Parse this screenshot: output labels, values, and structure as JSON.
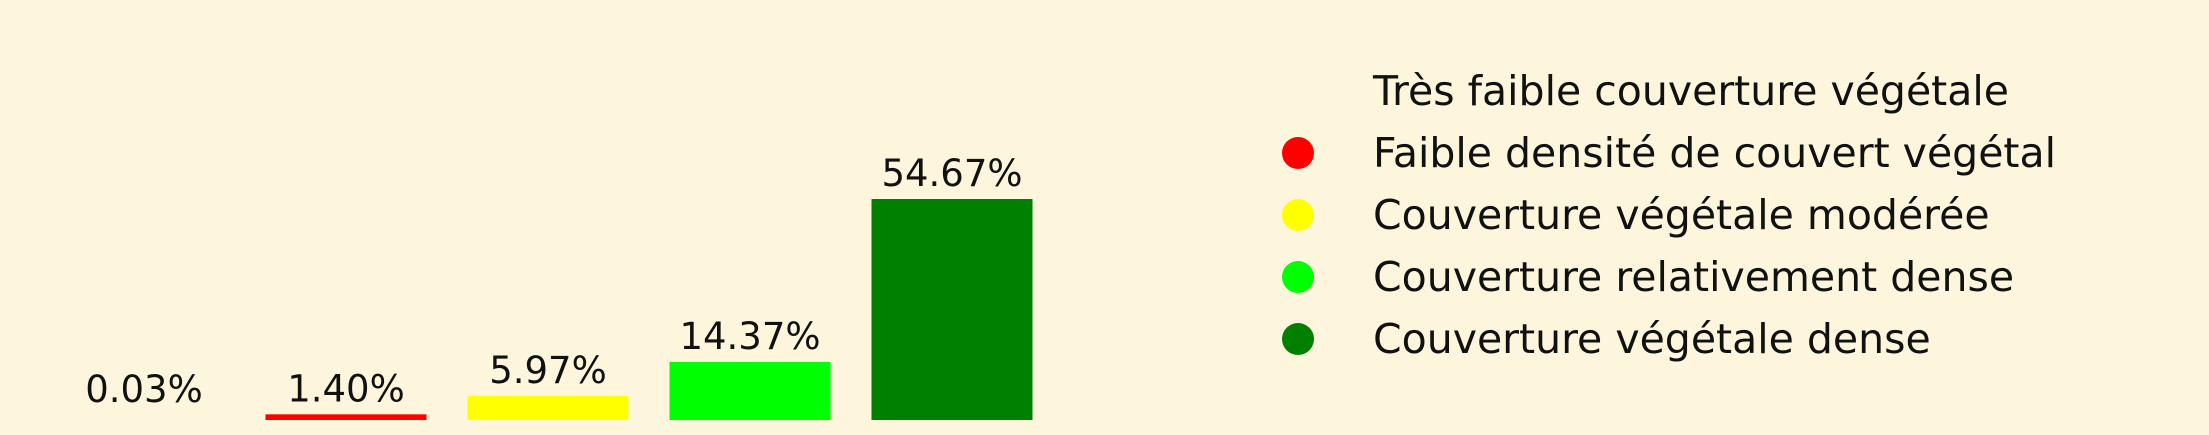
{
  "chart_data": {
    "type": "bar",
    "categories": [
      "Très faible couverture végétale",
      "Faible densité de couvert végétal",
      "Couverture végétale modérée",
      "Couverture relativement dense",
      "Couverture végétale dense"
    ],
    "values": [
      0.03,
      1.4,
      5.97,
      14.37,
      54.67
    ],
    "value_labels": [
      "0.03%",
      "1.40%",
      "5.97%",
      "14.37%",
      "54.67%"
    ],
    "colors": [
      "#fdf6dc",
      "#ff0000",
      "#ffff00",
      "#00ff00",
      "#008000"
    ],
    "ylim": [
      0,
      54.67
    ],
    "legend": {
      "placement": "right",
      "entries": [
        "Très faible couverture végétale",
        "Faible densité de couvert végétal",
        "Couverture végétale modérée",
        "Couverture relativement dense",
        "Couverture végétale dense"
      ]
    },
    "axes_visible": false,
    "grid": false
  }
}
